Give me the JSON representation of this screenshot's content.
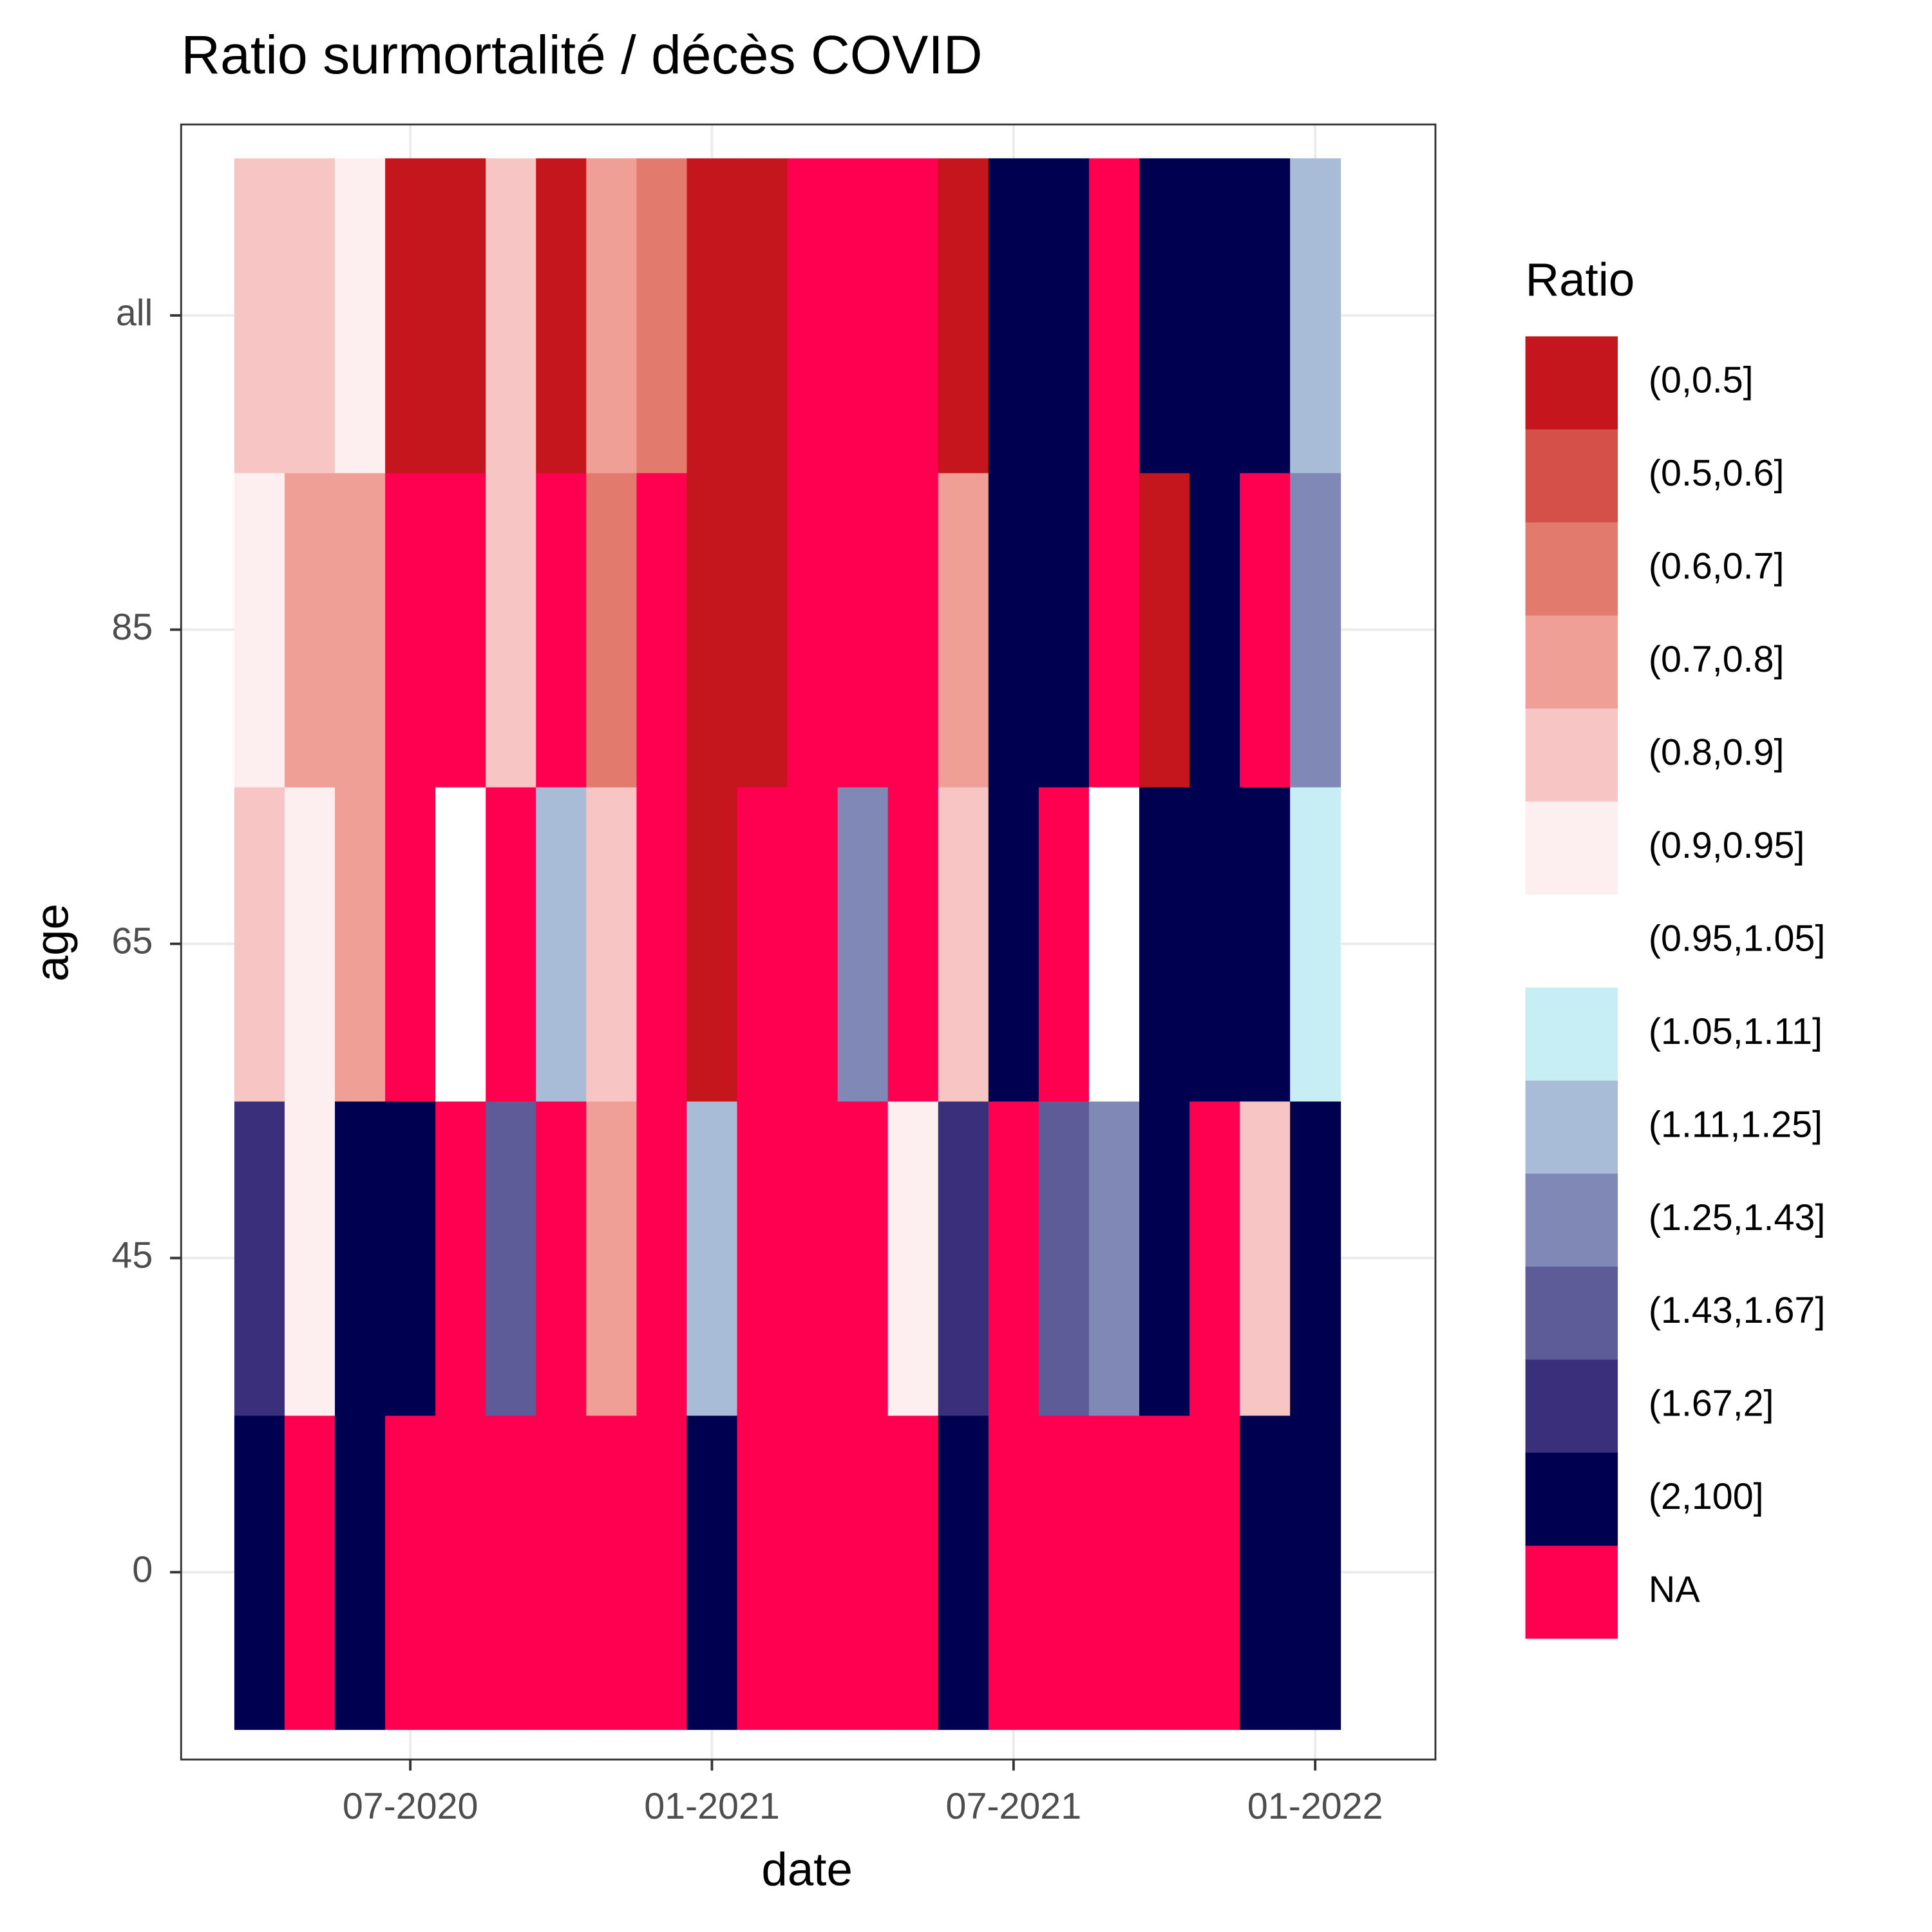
{
  "chart_data": {
    "type": "heatmap",
    "title": "Ratio surmortalité / décès COVID",
    "x_label": "date",
    "y_label": "age",
    "categories": [
      null,
      null,
      null,
      "07-2020",
      null,
      null,
      null,
      null,
      null,
      "01-2021",
      null,
      null,
      null,
      null,
      null,
      "07-2021",
      null,
      null,
      null,
      null,
      null,
      "01-2022"
    ],
    "y_categories": [
      "0",
      "45",
      "65",
      "85",
      "all"
    ],
    "values": [
      [
        "(2,100]",
        null,
        "(2,100]",
        null,
        null,
        null,
        null,
        null,
        null,
        "(2,100]",
        null,
        null,
        null,
        null,
        "(2,100]",
        null,
        null,
        null,
        null,
        null,
        "(2,100]",
        "(2,100]"
      ],
      [
        "(1.67,2]",
        "(0.9,0.95]",
        "(2,100]",
        "(2,100]",
        null,
        "(1.43,1.67]",
        null,
        "(0.7,0.8]",
        null,
        "(1.11,1.25]",
        null,
        null,
        null,
        "(0.9,0.95]",
        "(1.67,2]",
        null,
        "(1.43,1.67]",
        "(1.25,1.43]",
        "(2,100]",
        null,
        "(0.8,0.9]",
        "(2,100]"
      ],
      [
        "(0.8,0.9]",
        "(0.9,0.95]",
        "(0.7,0.8]",
        null,
        "(0.95,1.05]",
        null,
        "(1.11,1.25]",
        "(0.8,0.9]",
        null,
        "(0,0.5]",
        null,
        null,
        "(1.25,1.43]",
        null,
        "(0.8,0.9]",
        "(2,100]",
        null,
        "(0.95,1.05]",
        "(2,100]",
        "(2,100]",
        "(2,100]",
        "(1.05,1.11]"
      ],
      [
        "(0.9,0.95]",
        "(0.7,0.8]",
        "(0.7,0.8]",
        null,
        null,
        "(0.8,0.9]",
        null,
        "(0.6,0.7]",
        null,
        "(0,0.5]",
        "(0,0.5]",
        null,
        null,
        null,
        "(0.7,0.8]",
        "(2,100]",
        "(2,100]",
        null,
        "(0,0.5]",
        "(2,100]",
        null,
        "(1.25,1.43]"
      ],
      [
        "(0.8,0.9]",
        "(0.8,0.9]",
        "(0.9,0.95]",
        "(0,0.5]",
        "(0,0.5]",
        "(0.8,0.9]",
        "(0,0.5]",
        "(0.7,0.8]",
        "(0.6,0.7]",
        "(0,0.5]",
        "(0,0.5]",
        null,
        null,
        null,
        "(0,0.5]",
        "(2,100]",
        "(2,100]",
        null,
        "(2,100]",
        "(2,100]",
        "(2,100]",
        "(1.11,1.25]"
      ]
    ],
    "legend": {
      "title": "Ratio",
      "levels": [
        "(0,0.5]",
        "(0.5,0.6]",
        "(0.6,0.7]",
        "(0.7,0.8]",
        "(0.8,0.9]",
        "(0.9,0.95]",
        "(0.95,1.05]",
        "(1.05,1.11]",
        "(1.11,1.25]",
        "(1.25,1.43]",
        "(1.43,1.67]",
        "(1.67,2]",
        "(2,100]"
      ],
      "colors": [
        "#c4161c",
        "#d6504a",
        "#e27b6e",
        "#ef9f96",
        "#f7c6c4",
        "#fdeeef",
        "#ffffff",
        "#c8eef5",
        "#a8bcd8",
        "#8088b6",
        "#5e5c98",
        "#3a2f7a",
        "#000050"
      ],
      "na_label": "NA",
      "na_color": "#ff0050"
    }
  }
}
